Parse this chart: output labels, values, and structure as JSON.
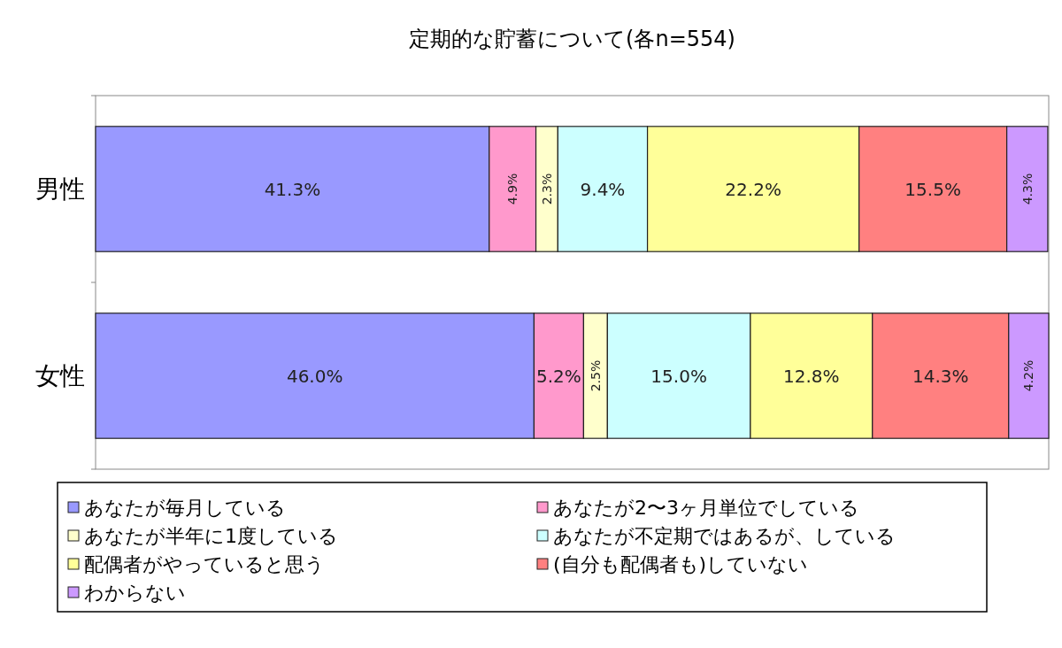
{
  "chart_data": {
    "type": "bar",
    "orientation": "horizontal",
    "stacked": true,
    "title": "定期的な貯蓄について(各n=554)",
    "categories": [
      "男性",
      "女性"
    ],
    "xlim": [
      0,
      100
    ],
    "tick_labels": "y",
    "legend": "bottom",
    "series": [
      {
        "name": "あなたが毎月している",
        "color": "#9999ff",
        "values": [
          41.3,
          46.0
        ],
        "value_labels": [
          "41.3%",
          "46.0%"
        ]
      },
      {
        "name": "あなたが2〜3ヶ月単位でしている",
        "color": "#ff99cc",
        "values": [
          4.9,
          5.2
        ],
        "value_labels": [
          "4.9%",
          "5.2%"
        ]
      },
      {
        "name": "あなたが半年に1度している",
        "color": "#ffffcc",
        "values": [
          2.3,
          2.5
        ],
        "value_labels": [
          "2.3%",
          "2.5%"
        ]
      },
      {
        "name": "あなたが不定期ではあるが、している",
        "color": "#ccffff",
        "values": [
          9.4,
          15.0
        ],
        "value_labels": [
          "9.4%",
          "15.0%"
        ]
      },
      {
        "name": "配偶者がやっていると思う",
        "color": "#ffff99",
        "values": [
          22.2,
          12.8
        ],
        "value_labels": [
          "22.2%",
          "12.8%"
        ]
      },
      {
        "name": "(自分も配偶者も)していない",
        "color": "#ff8080",
        "values": [
          15.5,
          14.3
        ],
        "value_labels": [
          "15.5%",
          "14.3%"
        ]
      },
      {
        "name": "わからない",
        "color": "#cc99ff",
        "values": [
          4.3,
          4.2
        ],
        "value_labels": [
          "4.3%",
          "4.2%"
        ]
      }
    ]
  }
}
